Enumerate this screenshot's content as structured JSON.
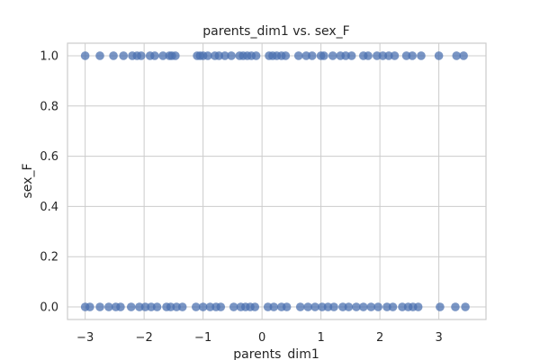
{
  "chart_data": {
    "type": "scatter",
    "title": "parents_dim1 vs. sex_F",
    "xlabel": "parents_dim1",
    "ylabel": "sex_F",
    "xlim": [
      -3.3,
      3.8
    ],
    "ylim": [
      -0.05,
      1.05
    ],
    "grid": true,
    "x_ticks": [
      -3,
      -2,
      -1,
      0,
      1,
      2,
      3
    ],
    "y_ticks": [
      0.0,
      0.2,
      0.4,
      0.6,
      0.8,
      1.0
    ],
    "x_tick_labels": [
      "−3",
      "−2",
      "−1",
      "0",
      "1",
      "2",
      "3"
    ],
    "y_tick_labels": [
      "0.0",
      "0.2",
      "0.4",
      "0.6",
      "0.8",
      "1.0"
    ],
    "colors": {
      "point": "#4c72b0",
      "grid": "#cccccc",
      "axis": "#cccccc",
      "text": "#262626"
    },
    "series": [
      {
        "points": [
          {
            "x": -3.0,
            "y": 1
          },
          {
            "x": -2.75,
            "y": 1
          },
          {
            "x": -2.52,
            "y": 1
          },
          {
            "x": -2.35,
            "y": 1
          },
          {
            "x": -2.2,
            "y": 1
          },
          {
            "x": -2.12,
            "y": 1
          },
          {
            "x": -2.05,
            "y": 1
          },
          {
            "x": -1.9,
            "y": 1
          },
          {
            "x": -1.82,
            "y": 1
          },
          {
            "x": -1.68,
            "y": 1
          },
          {
            "x": -1.57,
            "y": 1
          },
          {
            "x": -1.53,
            "y": 1
          },
          {
            "x": -1.47,
            "y": 1
          },
          {
            "x": -1.1,
            "y": 1
          },
          {
            "x": -1.05,
            "y": 1
          },
          {
            "x": -1.0,
            "y": 1
          },
          {
            "x": -0.92,
            "y": 1
          },
          {
            "x": -0.8,
            "y": 1
          },
          {
            "x": -0.73,
            "y": 1
          },
          {
            "x": -0.63,
            "y": 1
          },
          {
            "x": -0.52,
            "y": 1
          },
          {
            "x": -0.38,
            "y": 1
          },
          {
            "x": -0.32,
            "y": 1
          },
          {
            "x": -0.25,
            "y": 1
          },
          {
            "x": -0.18,
            "y": 1
          },
          {
            "x": -0.1,
            "y": 1
          },
          {
            "x": 0.12,
            "y": 1
          },
          {
            "x": 0.18,
            "y": 1
          },
          {
            "x": 0.25,
            "y": 1
          },
          {
            "x": 0.33,
            "y": 1
          },
          {
            "x": 0.4,
            "y": 1
          },
          {
            "x": 0.62,
            "y": 1
          },
          {
            "x": 0.75,
            "y": 1
          },
          {
            "x": 0.85,
            "y": 1
          },
          {
            "x": 1.0,
            "y": 1
          },
          {
            "x": 1.05,
            "y": 1
          },
          {
            "x": 1.2,
            "y": 1
          },
          {
            "x": 1.33,
            "y": 1
          },
          {
            "x": 1.42,
            "y": 1
          },
          {
            "x": 1.52,
            "y": 1
          },
          {
            "x": 1.72,
            "y": 1
          },
          {
            "x": 1.8,
            "y": 1
          },
          {
            "x": 1.95,
            "y": 1
          },
          {
            "x": 2.05,
            "y": 1
          },
          {
            "x": 2.15,
            "y": 1
          },
          {
            "x": 2.25,
            "y": 1
          },
          {
            "x": 2.45,
            "y": 1
          },
          {
            "x": 2.55,
            "y": 1
          },
          {
            "x": 2.7,
            "y": 1
          },
          {
            "x": 3.0,
            "y": 1
          },
          {
            "x": 3.3,
            "y": 1
          },
          {
            "x": 3.42,
            "y": 1
          },
          {
            "x": -3.0,
            "y": 0
          },
          {
            "x": -2.92,
            "y": 0
          },
          {
            "x": -2.75,
            "y": 0
          },
          {
            "x": -2.6,
            "y": 0
          },
          {
            "x": -2.48,
            "y": 0
          },
          {
            "x": -2.4,
            "y": 0
          },
          {
            "x": -2.22,
            "y": 0
          },
          {
            "x": -2.08,
            "y": 0
          },
          {
            "x": -1.98,
            "y": 0
          },
          {
            "x": -1.88,
            "y": 0
          },
          {
            "x": -1.78,
            "y": 0
          },
          {
            "x": -1.62,
            "y": 0
          },
          {
            "x": -1.55,
            "y": 0
          },
          {
            "x": -1.45,
            "y": 0
          },
          {
            "x": -1.35,
            "y": 0
          },
          {
            "x": -1.12,
            "y": 0
          },
          {
            "x": -1.0,
            "y": 0
          },
          {
            "x": -0.88,
            "y": 0
          },
          {
            "x": -0.78,
            "y": 0
          },
          {
            "x": -0.7,
            "y": 0
          },
          {
            "x": -0.48,
            "y": 0
          },
          {
            "x": -0.36,
            "y": 0
          },
          {
            "x": -0.28,
            "y": 0
          },
          {
            "x": -0.2,
            "y": 0
          },
          {
            "x": -0.12,
            "y": 0
          },
          {
            "x": 0.1,
            "y": 0
          },
          {
            "x": 0.2,
            "y": 0
          },
          {
            "x": 0.33,
            "y": 0
          },
          {
            "x": 0.42,
            "y": 0
          },
          {
            "x": 0.65,
            "y": 0
          },
          {
            "x": 0.78,
            "y": 0
          },
          {
            "x": 0.9,
            "y": 0
          },
          {
            "x": 1.02,
            "y": 0
          },
          {
            "x": 1.12,
            "y": 0
          },
          {
            "x": 1.22,
            "y": 0
          },
          {
            "x": 1.37,
            "y": 0
          },
          {
            "x": 1.47,
            "y": 0
          },
          {
            "x": 1.6,
            "y": 0
          },
          {
            "x": 1.72,
            "y": 0
          },
          {
            "x": 1.85,
            "y": 0
          },
          {
            "x": 1.97,
            "y": 0
          },
          {
            "x": 2.12,
            "y": 0
          },
          {
            "x": 2.22,
            "y": 0
          },
          {
            "x": 2.38,
            "y": 0
          },
          {
            "x": 2.48,
            "y": 0
          },
          {
            "x": 2.56,
            "y": 0
          },
          {
            "x": 2.65,
            "y": 0
          },
          {
            "x": 3.02,
            "y": 0
          },
          {
            "x": 3.28,
            "y": 0
          },
          {
            "x": 3.45,
            "y": 0
          }
        ]
      }
    ]
  }
}
